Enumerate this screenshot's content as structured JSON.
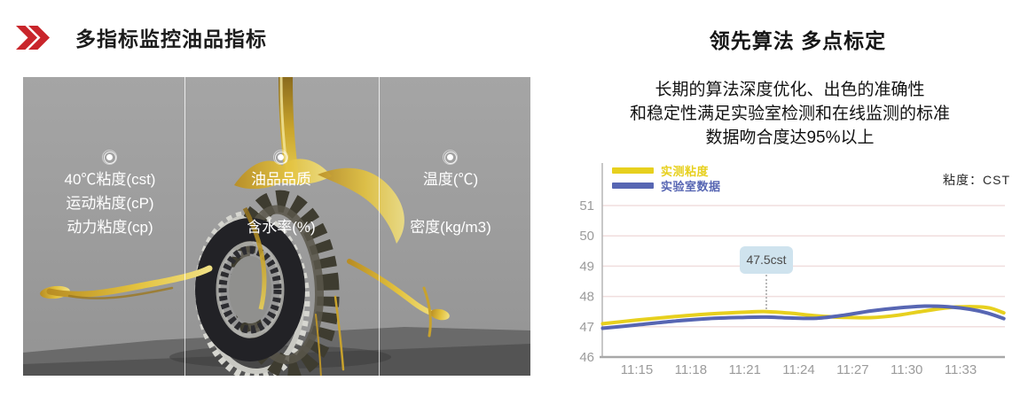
{
  "left_panel": {
    "title": "多指标监控油品指标",
    "accent_color": "#c9252b",
    "photo": {
      "columns": [
        {
          "labels": [
            {
              "text": "40℃粘度(cst)",
              "row": 0
            },
            {
              "text": "运动粘度(cP)",
              "row": 1
            },
            {
              "text": "动力粘度(cp)",
              "row": 2
            }
          ]
        },
        {
          "labels": [
            {
              "text": "油品品质",
              "row": 0
            },
            {
              "text": "含水率(%)",
              "row": 2
            }
          ]
        },
        {
          "labels": [
            {
              "text": "温度(℃)",
              "row": 0
            },
            {
              "text": "密度(kg/m3)",
              "row": 2
            }
          ]
        }
      ]
    }
  },
  "right_panel": {
    "title": "领先算法 多点标定",
    "description_lines": [
      "长期的算法深度优化、出色的准确性",
      "和稳定性满足实验室检测和在线监测的标准",
      "数据吻合度达95%以上"
    ]
  },
  "chart_data": {
    "type": "line",
    "unit_label": "粘度：CST",
    "legend_position": "top-left",
    "grid": true,
    "grid_color": "#f0dede",
    "axis_color": "#a8a8a8",
    "tick_color": "#9b9b9b",
    "ylim": [
      46,
      51
    ],
    "y_ticks": [
      51,
      50,
      49,
      48,
      47,
      46
    ],
    "x_ticks": [
      {
        "label": "11:15",
        "t": 15
      },
      {
        "label": "11:18",
        "t": 18
      },
      {
        "label": "11:21",
        "t": 21
      },
      {
        "label": "11:24",
        "t": 24
      },
      {
        "label": "11:27",
        "t": 27
      },
      {
        "label": "11:30",
        "t": 30
      },
      {
        "label": "11:33",
        "t": 33
      }
    ],
    "x_range_minutes": [
      13.1,
      35.4
    ],
    "annotation": {
      "text": "47.5cst",
      "t": 22.2,
      "v": 47.5,
      "bg": "#cfe3ee"
    },
    "series": [
      {
        "name": "实测粘度",
        "color": "#e7d01e",
        "points": [
          [
            13.1,
            47.1
          ],
          [
            15,
            47.22
          ],
          [
            17,
            47.33
          ],
          [
            19,
            47.42
          ],
          [
            21,
            47.48
          ],
          [
            22.2,
            47.5
          ],
          [
            23.5,
            47.45
          ],
          [
            25,
            47.36
          ],
          [
            26.5,
            47.31
          ],
          [
            28,
            47.3
          ],
          [
            29.5,
            47.38
          ],
          [
            31,
            47.52
          ],
          [
            32.5,
            47.64
          ],
          [
            33.8,
            47.66
          ],
          [
            34.6,
            47.62
          ],
          [
            35.4,
            47.46
          ]
        ]
      },
      {
        "name": "实验室数据",
        "color": "#5766b3",
        "points": [
          [
            13.1,
            46.95
          ],
          [
            15,
            47.06
          ],
          [
            17,
            47.18
          ],
          [
            19,
            47.27
          ],
          [
            21,
            47.31
          ],
          [
            22.2,
            47.32
          ],
          [
            23.5,
            47.29
          ],
          [
            25,
            47.28
          ],
          [
            26.5,
            47.38
          ],
          [
            28,
            47.52
          ],
          [
            29.5,
            47.62
          ],
          [
            31,
            47.68
          ],
          [
            32.3,
            47.66
          ],
          [
            33.5,
            47.58
          ],
          [
            34.5,
            47.45
          ],
          [
            35.4,
            47.27
          ]
        ]
      }
    ]
  }
}
